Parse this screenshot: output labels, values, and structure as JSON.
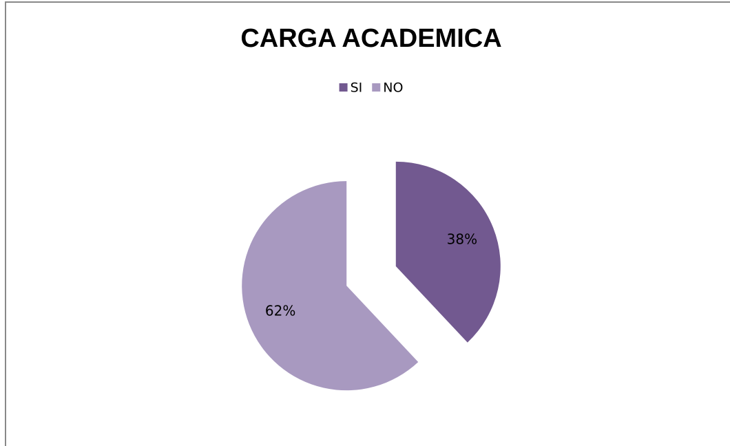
{
  "chart_data": {
    "type": "pie",
    "title": "CARGA ACADEMICA",
    "categories": [
      "SI",
      "NO"
    ],
    "values": [
      38,
      62
    ],
    "value_labels": [
      "38%",
      "62%"
    ],
    "colors": [
      "#725990",
      "#a899c0"
    ],
    "legend": "top",
    "exploded": true
  }
}
